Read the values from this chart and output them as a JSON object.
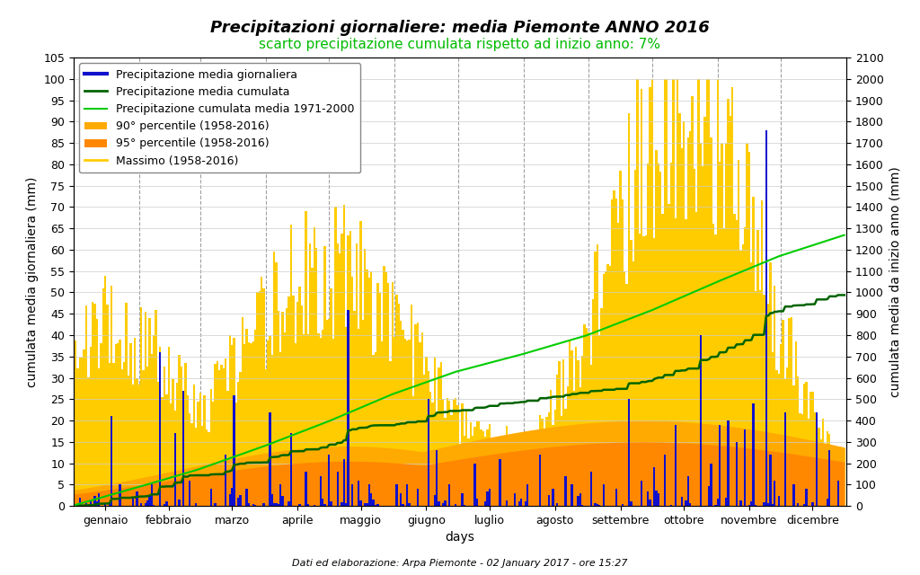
{
  "title": "Precipitazioni giornaliere: media Piemonte ANNO 2016",
  "subtitle": "scarto precipitazione cumulata rispetto ad inizio anno: 7%",
  "xlabel": "days",
  "ylabel_left": "cumulata media giornaliera (mm)",
  "ylabel_right": "cumulata media da inizio anno (mm)",
  "footer": "Dati ed elaborazione: Arpa Piemonte - 02 January 2017 - ore 15:27",
  "ylim_left": [
    0,
    105
  ],
  "ylim_right": [
    0,
    2100
  ],
  "yticks_left": [
    0,
    5,
    10,
    15,
    20,
    25,
    30,
    35,
    40,
    45,
    50,
    55,
    60,
    65,
    70,
    75,
    80,
    85,
    90,
    95,
    100,
    105
  ],
  "yticks_right": [
    0,
    100,
    200,
    300,
    400,
    500,
    600,
    700,
    800,
    900,
    1000,
    1100,
    1200,
    1300,
    1400,
    1500,
    1600,
    1700,
    1800,
    1900,
    2000,
    2100
  ],
  "month_labels": [
    "gennaio",
    "febbraio",
    "marzo",
    "aprile",
    "maggio",
    "giugno",
    "luglio",
    "agosto",
    "settembre",
    "ottobre",
    "novembre",
    "dicembre"
  ],
  "month_mids": [
    15,
    45,
    75,
    106,
    136,
    167,
    197,
    228,
    259,
    289,
    320,
    350
  ],
  "month_boundaries": [
    31,
    60,
    91,
    121,
    152,
    182,
    213,
    244,
    274,
    305,
    335
  ],
  "color_bar_blue": "#1010cc",
  "color_cumul_2016": "#006400",
  "color_cumul_clim": "#00cc00",
  "color_p90": "#ffaa00",
  "color_p95": "#ff8800",
  "color_massimo": "#ffcc00",
  "title_fontsize": 13,
  "subtitle_fontsize": 11,
  "subtitle_color": "#00bb00",
  "legend_fontsize": 9,
  "tick_fontsize": 9,
  "label_fontsize": 10,
  "days_n": 366
}
